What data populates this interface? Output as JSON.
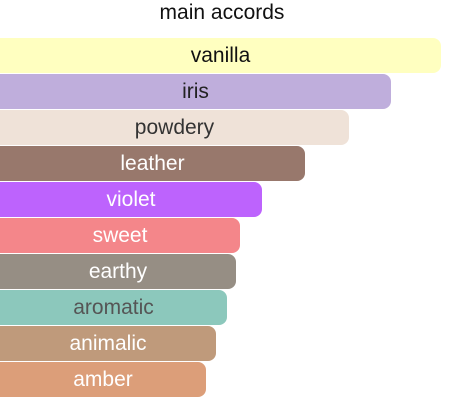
{
  "title": "main accords",
  "accords": [
    {
      "label": "vanilla",
      "strength": 0.988,
      "background": "#ffffc0",
      "text_color": "#111111"
    },
    {
      "label": "iris",
      "strength": 0.877,
      "background": "#bfaedc",
      "text_color": "#222222"
    },
    {
      "label": "powdery",
      "strength": 0.783,
      "background": "#efe2d8",
      "text_color": "#333333"
    },
    {
      "label": "leather",
      "strength": 0.683,
      "background": "#98786c",
      "text_color": "#ffffff"
    },
    {
      "label": "violet",
      "strength": 0.587,
      "background": "#bd63fd",
      "text_color": "#ffffff"
    },
    {
      "label": "sweet",
      "strength": 0.537,
      "background": "#f4868a",
      "text_color": "#ffffff"
    },
    {
      "label": "earthy",
      "strength": 0.53,
      "background": "#968e84",
      "text_color": "#ffffff"
    },
    {
      "label": "aromatic",
      "strength": 0.51,
      "background": "#8cc8bc",
      "text_color": "#555555"
    },
    {
      "label": "animalic",
      "strength": 0.485,
      "background": "#bf9a7b",
      "text_color": "#ffffff"
    },
    {
      "label": "amber",
      "strength": 0.462,
      "background": "#dc9e79",
      "text_color": "#ffffff"
    }
  ]
}
